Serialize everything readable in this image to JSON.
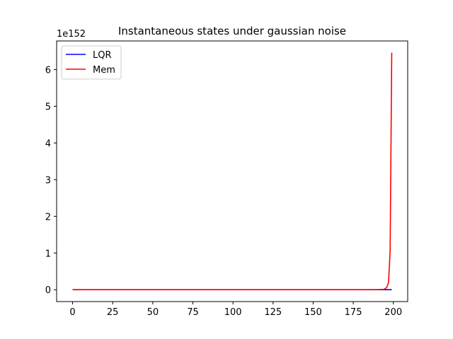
{
  "chart_data": {
    "type": "line",
    "title": "Instantaneous states under gaussian noise",
    "xlabel": "",
    "ylabel": "",
    "y_offset_text": "1e152",
    "xlim": [
      -9.95,
      208.95
    ],
    "ylim": [
      -0.323,
      6.78
    ],
    "x_ticks": [
      0,
      25,
      50,
      75,
      100,
      125,
      150,
      175,
      200
    ],
    "y_ticks": [
      0,
      1,
      2,
      3,
      4,
      5,
      6
    ],
    "legend_position": "upper-left",
    "grid": false,
    "series": [
      {
        "name": "LQR",
        "color": "#0000ff",
        "x": [
          0,
          25,
          50,
          75,
          100,
          125,
          150,
          175,
          199
        ],
        "y": [
          0,
          0,
          0,
          0,
          0,
          0,
          0,
          0,
          0
        ]
      },
      {
        "name": "Mem",
        "color": "#ff0000",
        "x": [
          0,
          25,
          50,
          75,
          100,
          125,
          150,
          175,
          190,
          194,
          195,
          196,
          197,
          198,
          199
        ],
        "y": [
          0,
          0,
          0,
          0,
          0,
          0,
          0,
          0,
          0.002,
          0.01,
          0.03,
          0.07,
          0.2,
          1.05,
          6.46
        ]
      }
    ]
  }
}
